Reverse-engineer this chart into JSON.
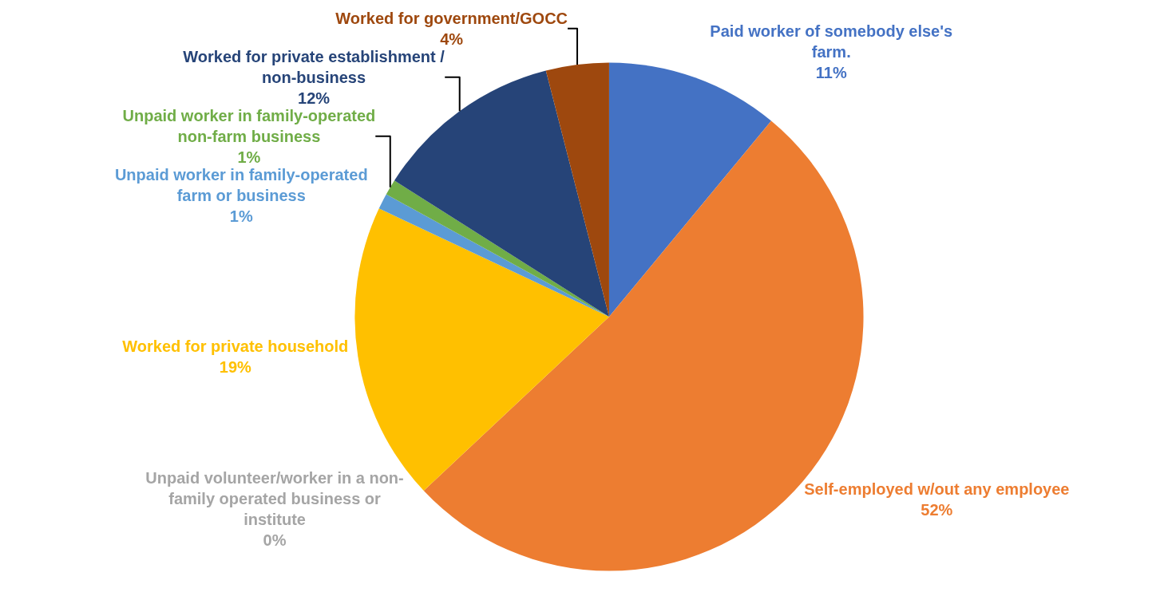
{
  "chart_data": {
    "type": "pie",
    "categories": [
      "Paid worker of somebody else's farm.",
      "Self-employed w/out any employee",
      "Unpaid volunteer/worker in a non-family operated business or institute",
      "Worked for private household",
      "Unpaid worker in family-operated farm or business",
      "Unpaid worker in family-operated non-farm business",
      "Worked for private establishment / non-business",
      "Worked for government/GOCC"
    ],
    "values": [
      11,
      52,
      0,
      19,
      1,
      1,
      12,
      4
    ],
    "value_labels": [
      "11%",
      "52%",
      "0%",
      "19%",
      "1%",
      "1%",
      "12%",
      "4%"
    ],
    "colors": [
      "#4472c4",
      "#ed7d31",
      "#a5a5a5",
      "#ffc000",
      "#5b9bd5",
      "#70ad47",
      "#264478",
      "#9e480e"
    ],
    "legend": false
  }
}
